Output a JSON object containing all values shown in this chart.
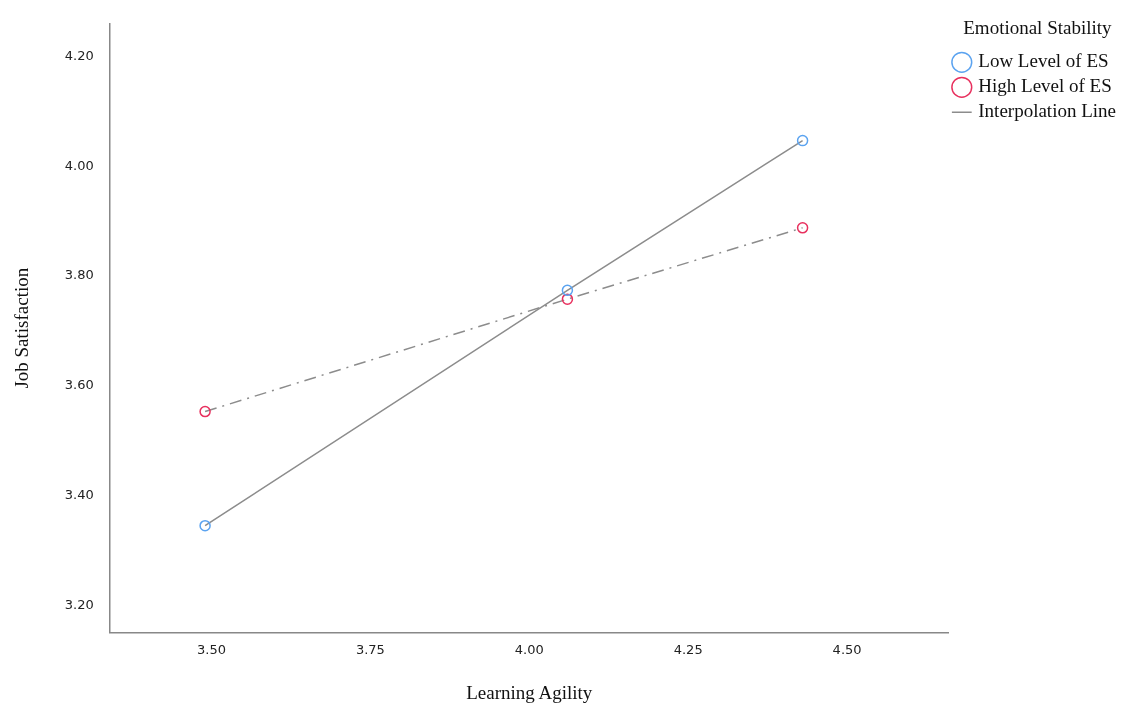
{
  "chart_data": {
    "type": "scatter",
    "xlabel": "Learning Agility",
    "ylabel": "Job Satisfaction",
    "legend_title": "Emotional Stability",
    "xlim": [
      3.34,
      4.66
    ],
    "xticks": [
      {
        "value": 3.5,
        "label": "3.50"
      },
      {
        "value": 3.75,
        "label": "3.75"
      },
      {
        "value": 4,
        "label": "4.00"
      },
      {
        "value": 4.25,
        "label": "4.25"
      },
      {
        "value": 4.5,
        "label": "4.50"
      }
    ],
    "ylim": [
      3.15,
      4.26
    ],
    "yticks": [
      {
        "value": 3.2,
        "label": "3.20"
      },
      {
        "value": 3.4,
        "label": "3.40"
      },
      {
        "value": 3.6,
        "label": "3.60"
      },
      {
        "value": 3.8,
        "label": "3.80"
      },
      {
        "value": 4,
        "label": "4.00"
      },
      {
        "value": 4.2,
        "label": "4.20"
      }
    ],
    "grid": false,
    "legend": "top right",
    "marker": "circle",
    "series": [
      {
        "name": "Low Level of ES",
        "type": "scatter",
        "color": "#5ba3f0",
        "x": [
          3.49,
          4.06,
          4.43
        ],
        "values": [
          3.345,
          3.774,
          4.047
        ]
      },
      {
        "name": "High Level of ES",
        "type": "scatter",
        "color": "#e8305e",
        "x": [
          3.49,
          4.06,
          4.43
        ],
        "values": [
          3.553,
          3.758,
          3.888
        ]
      },
      {
        "name": "Interpolation Line",
        "type": "line",
        "color": "#8c8c8c",
        "line_style": "solid",
        "marker": "none",
        "x": [
          3.49,
          4.06,
          4.43
        ],
        "values": [
          3.345,
          3.774,
          4.047
        ]
      },
      {
        "type": "line",
        "color": "#8c8c8c",
        "line_style": "dashed",
        "marker": "none",
        "x": [
          3.49,
          4.06,
          4.43
        ],
        "values": [
          3.553,
          3.758,
          3.888
        ]
      }
    ]
  }
}
